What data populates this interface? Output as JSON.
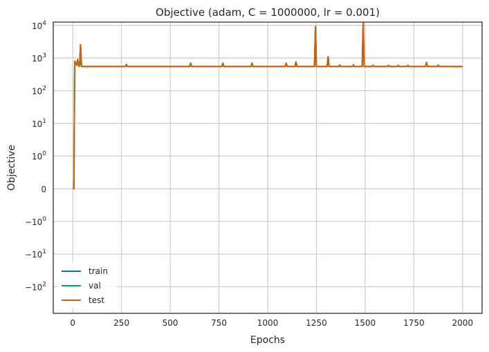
{
  "chart_data": {
    "type": "line",
    "title": "Objective (adam, C = 1000000, lr = 0.001)",
    "xlabel": "Epochs",
    "ylabel": "Objective",
    "xlim": [
      -100,
      2100
    ],
    "yscale": "symlog",
    "linthresh": 1,
    "ylim": [
      -650,
      12600
    ],
    "grid": true,
    "legend_position": "bottom-left",
    "x_ticks": [
      0,
      250,
      500,
      750,
      1000,
      1250,
      1500,
      1750,
      2000
    ],
    "x_tick_labels": [
      "0",
      "250",
      "500",
      "750",
      "1000",
      "1250",
      "1500",
      "1750",
      "2000"
    ],
    "y_ticks": [
      -100,
      -10,
      -1,
      0,
      1,
      10,
      100,
      1000,
      10000
    ],
    "y_tick_labels": [
      {
        "base": "−10",
        "exp": "2"
      },
      {
        "base": "−10",
        "exp": "1"
      },
      {
        "base": "−10",
        "exp": "0"
      },
      {
        "base": "0",
        "exp": ""
      },
      {
        "base": "10",
        "exp": "0"
      },
      {
        "base": "10",
        "exp": "1"
      },
      {
        "base": "10",
        "exp": "2"
      },
      {
        "base": "10",
        "exp": "3"
      },
      {
        "base": "10",
        "exp": "4"
      }
    ],
    "series": [
      {
        "name": "train",
        "color": "#0173b2",
        "x": [
          0,
          5,
          6,
          10,
          15,
          20,
          25,
          30,
          35,
          40,
          45,
          50,
          100,
          270,
          275,
          280,
          600,
          605,
          610,
          765,
          770,
          775,
          915,
          920,
          925,
          1090,
          1095,
          1100,
          1140,
          1145,
          1150,
          1240,
          1245,
          1250,
          1305,
          1310,
          1315,
          1365,
          1370,
          1375,
          1435,
          1440,
          1445,
          1485,
          1490,
          1495,
          1535,
          1540,
          1545,
          1615,
          1620,
          1625,
          1665,
          1670,
          1675,
          1715,
          1720,
          1725,
          1810,
          1815,
          1820,
          1870,
          1875,
          1880,
          2000
        ],
        "y": [
          0,
          0,
          0,
          800,
          700,
          600,
          900,
          580,
          560,
          2600,
          560,
          550,
          550,
          550,
          640,
          550,
          550,
          700,
          550,
          550,
          700,
          550,
          550,
          700,
          550,
          550,
          700,
          550,
          550,
          760,
          550,
          550,
          8500,
          550,
          550,
          1100,
          550,
          550,
          610,
          550,
          550,
          620,
          550,
          550,
          13000,
          550,
          550,
          600,
          550,
          550,
          600,
          550,
          550,
          600,
          550,
          550,
          600,
          550,
          550,
          740,
          550,
          550,
          610,
          550,
          550
        ]
      },
      {
        "name": "val",
        "color": "#029e73",
        "x": [
          0,
          5,
          6,
          10,
          15,
          20,
          25,
          30,
          35,
          40,
          45,
          50,
          100,
          270,
          275,
          280,
          600,
          605,
          610,
          765,
          770,
          775,
          915,
          920,
          925,
          1090,
          1095,
          1100,
          1140,
          1145,
          1150,
          1240,
          1245,
          1250,
          1305,
          1310,
          1315,
          1365,
          1370,
          1375,
          1435,
          1440,
          1445,
          1485,
          1490,
          1495,
          1535,
          1540,
          1545,
          1615,
          1620,
          1625,
          1665,
          1670,
          1675,
          1715,
          1720,
          1725,
          1810,
          1815,
          1820,
          1870,
          1875,
          1880,
          2000
        ],
        "y": [
          0,
          0,
          0,
          800,
          700,
          600,
          900,
          580,
          560,
          2600,
          560,
          550,
          550,
          550,
          640,
          550,
          550,
          700,
          550,
          550,
          700,
          550,
          550,
          700,
          550,
          550,
          700,
          550,
          550,
          760,
          550,
          550,
          9200,
          550,
          550,
          1100,
          550,
          550,
          610,
          550,
          550,
          620,
          550,
          550,
          13000,
          550,
          550,
          600,
          550,
          550,
          600,
          550,
          550,
          600,
          550,
          550,
          600,
          550,
          550,
          740,
          550,
          550,
          610,
          550,
          550
        ]
      },
      {
        "name": "test",
        "color": "#d55e00",
        "x": [
          0,
          5,
          6,
          10,
          15,
          20,
          25,
          30,
          35,
          40,
          45,
          50,
          100,
          270,
          275,
          280,
          600,
          605,
          610,
          765,
          770,
          775,
          915,
          920,
          925,
          1090,
          1095,
          1100,
          1140,
          1145,
          1150,
          1240,
          1245,
          1250,
          1305,
          1310,
          1315,
          1365,
          1370,
          1375,
          1435,
          1440,
          1445,
          1485,
          1490,
          1495,
          1535,
          1540,
          1545,
          1615,
          1620,
          1625,
          1665,
          1670,
          1675,
          1715,
          1720,
          1725,
          1810,
          1815,
          1820,
          1870,
          1875,
          1880,
          2000
        ],
        "y": [
          0,
          0,
          0,
          800,
          700,
          600,
          900,
          580,
          560,
          2600,
          560,
          550,
          550,
          550,
          640,
          550,
          550,
          700,
          550,
          550,
          700,
          550,
          550,
          700,
          550,
          550,
          700,
          550,
          550,
          760,
          550,
          550,
          8300,
          550,
          550,
          1100,
          550,
          550,
          610,
          550,
          550,
          620,
          550,
          550,
          13000,
          550,
          550,
          600,
          550,
          550,
          600,
          550,
          550,
          600,
          550,
          550,
          600,
          550,
          550,
          740,
          550,
          550,
          610,
          550,
          550
        ]
      }
    ]
  }
}
